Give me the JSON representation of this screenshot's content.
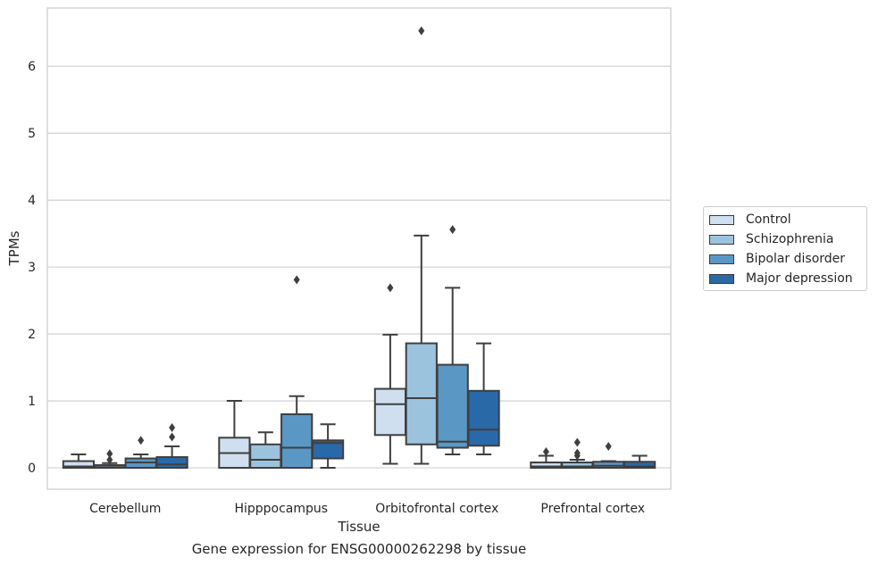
{
  "chart_data": {
    "type": "box",
    "title": "Gene expression for ENSG00000262298 by tissue",
    "xlabel": "Tissue",
    "ylabel": "TPMs",
    "ylim": [
      -0.32,
      6.87
    ],
    "yticks": [
      0,
      1,
      2,
      3,
      4,
      5,
      6
    ],
    "grid": "horizontal",
    "legend_position": "right",
    "categories": [
      "Cerebellum",
      "Hipppocampus",
      "Orbitofrontal cortex",
      "Prefrontal cortex"
    ],
    "series": [
      {
        "name": "Control",
        "color": "#cfdff0",
        "boxes": [
          {
            "whisker_low": 0,
            "q1": 0,
            "median": 0.02,
            "q3": 0.1,
            "whisker_high": 0.2,
            "outliers": []
          },
          {
            "whisker_low": 0,
            "q1": 0,
            "median": 0.22,
            "q3": 0.45,
            "whisker_high": 1.0,
            "outliers": []
          },
          {
            "whisker_low": 0.06,
            "q1": 0.49,
            "median": 0.95,
            "q3": 1.18,
            "whisker_high": 1.99,
            "outliers": [
              2.69
            ]
          },
          {
            "whisker_low": 0,
            "q1": 0,
            "median": 0.02,
            "q3": 0.08,
            "whisker_high": 0.18,
            "outliers": [
              0.24
            ]
          }
        ]
      },
      {
        "name": "Schizophrenia",
        "color": "#9cc3de",
        "boxes": [
          {
            "whisker_low": 0,
            "q1": 0,
            "median": 0.01,
            "q3": 0.04,
            "whisker_high": 0.07,
            "outliers": [
              0.12,
              0.21
            ]
          },
          {
            "whisker_low": 0,
            "q1": 0,
            "median": 0.12,
            "q3": 0.35,
            "whisker_high": 0.53,
            "outliers": []
          },
          {
            "whisker_low": 0.06,
            "q1": 0.35,
            "median": 1.04,
            "q3": 1.86,
            "whisker_high": 3.47,
            "outliers": [
              6.53
            ]
          },
          {
            "whisker_low": 0,
            "q1": 0,
            "median": 0.02,
            "q3": 0.08,
            "whisker_high": 0.12,
            "outliers": [
              0.18,
              0.22,
              0.38
            ]
          }
        ]
      },
      {
        "name": "Bipolar disorder",
        "color": "#5a97c5",
        "boxes": [
          {
            "whisker_low": 0,
            "q1": 0,
            "median": 0.08,
            "q3": 0.14,
            "whisker_high": 0.2,
            "outliers": [
              0.41
            ]
          },
          {
            "whisker_low": 0,
            "q1": 0,
            "median": 0.3,
            "q3": 0.8,
            "whisker_high": 1.07,
            "outliers": [
              2.81
            ]
          },
          {
            "whisker_low": 0.2,
            "q1": 0.3,
            "median": 0.39,
            "q3": 1.54,
            "whisker_high": 2.69,
            "outliers": [
              3.56
            ]
          },
          {
            "whisker_low": 0,
            "q1": 0,
            "median": 0.03,
            "q3": 0.09,
            "whisker_high": 0.1,
            "outliers": [
              0.32
            ]
          }
        ]
      },
      {
        "name": "Major depression",
        "color": "#2a69a8",
        "boxes": [
          {
            "whisker_low": 0,
            "q1": 0,
            "median": 0.05,
            "q3": 0.16,
            "whisker_high": 0.32,
            "outliers": [
              0.46,
              0.6
            ]
          },
          {
            "whisker_low": 0,
            "q1": 0.14,
            "median": 0.37,
            "q3": 0.41,
            "whisker_high": 0.65,
            "outliers": []
          },
          {
            "whisker_low": 0.2,
            "q1": 0.33,
            "median": 0.57,
            "q3": 1.15,
            "whisker_high": 1.86,
            "outliers": []
          },
          {
            "whisker_low": 0,
            "q1": 0,
            "median": 0.02,
            "q3": 0.09,
            "whisker_high": 0.18,
            "outliers": []
          }
        ]
      }
    ]
  }
}
